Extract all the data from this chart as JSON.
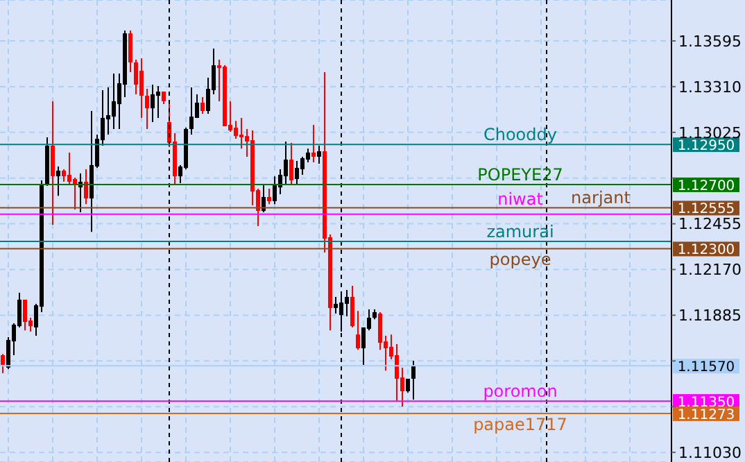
{
  "chart_data": {
    "type": "candlestick",
    "categories": [
      null,
      null,
      null,
      null,
      null,
      null,
      null,
      null,
      null,
      null,
      null,
      null,
      null,
      null,
      null,
      null,
      null,
      null,
      null,
      null,
      null,
      null,
      null,
      null,
      null,
      null,
      null,
      null,
      null,
      null,
      null,
      null,
      null,
      null,
      null,
      null,
      null,
      null,
      null,
      null,
      null,
      null,
      null,
      null,
      null,
      null,
      null,
      null,
      null,
      null,
      null,
      null,
      null,
      null,
      null,
      null,
      null,
      null,
      null,
      null,
      null,
      null,
      null,
      null,
      null,
      null,
      null,
      null,
      null,
      null,
      null,
      null,
      null,
      null,
      null,
      null,
      null,
      null,
      null,
      null,
      null,
      null,
      null,
      null,
      null,
      null,
      null,
      null,
      null,
      null,
      null,
      null,
      null,
      null,
      null,
      null,
      null,
      null,
      null,
      null,
      null,
      null,
      null,
      null,
      null,
      null,
      null,
      null,
      null,
      null,
      null,
      null,
      null,
      null,
      null,
      null,
      null,
      null,
      null,
      null,
      null
    ],
    "ohlc": [
      [
        1.11636,
        1.11644,
        1.11523,
        1.11575
      ],
      [
        1.11558,
        1.11748,
        1.11549,
        1.11731
      ],
      [
        1.11722,
        1.11835,
        1.11636,
        1.11826
      ],
      [
        1.11817,
        1.12025,
        1.11809,
        1.11982
      ],
      [
        1.11982,
        1.11982,
        1.11791,
        1.11843
      ],
      [
        1.11852,
        1.11869,
        1.11783,
        1.11817
      ],
      [
        1.11809,
        1.11956,
        1.11757,
        1.11947
      ],
      [
        1.11938,
        1.12726,
        1.11904,
        1.127
      ],
      [
        1.127,
        1.12994,
        1.12691,
        1.12942
      ],
      [
        1.12942,
        1.13219,
        1.12449,
        1.12751
      ],
      [
        1.12751,
        1.12812,
        1.1263,
        1.12786
      ],
      [
        1.12786,
        1.12795,
        1.12717,
        1.12751
      ],
      [
        1.1276,
        1.12899,
        1.127,
        1.12717
      ],
      [
        1.12734,
        1.12743,
        1.12544,
        1.127
      ],
      [
        1.12682,
        1.12769,
        1.12527,
        1.12717
      ],
      [
        1.12717,
        1.12795,
        1.12578,
        1.12613
      ],
      [
        1.12613,
        1.13158,
        1.12405,
        1.12821
      ],
      [
        1.12812,
        1.13011,
        1.12803,
        1.12985
      ],
      [
        1.12976,
        1.13288,
        1.12942,
        1.13115
      ],
      [
        1.13106,
        1.13305,
        1.13011,
        1.13132
      ],
      [
        1.13123,
        1.13392,
        1.13046,
        1.13219
      ],
      [
        1.13201,
        1.13392,
        1.13046,
        1.13331
      ],
      [
        1.13322,
        1.1366,
        1.13245,
        1.13642
      ],
      [
        1.13642,
        1.1366,
        1.134,
        1.13461
      ],
      [
        1.13461,
        1.13478,
        1.13262,
        1.13322
      ],
      [
        1.13409,
        1.13487,
        1.13115,
        1.13253
      ],
      [
        1.13253,
        1.13296,
        1.13046,
        1.13175
      ],
      [
        1.13175,
        1.13322,
        1.13089,
        1.13262
      ],
      [
        1.13253,
        1.13314,
        1.13115,
        1.13279
      ],
      [
        1.13279,
        1.13279,
        1.13201,
        1.13219
      ],
      [
        1.13089,
        1.13219,
        1.12933,
        1.12959
      ],
      [
        1.12968,
        1.1302,
        1.127,
        1.12751
      ],
      [
        1.12751,
        1.12821,
        1.12708,
        1.12812
      ],
      [
        1.12803,
        1.13054,
        1.12795,
        1.13046
      ],
      [
        1.13046,
        1.13305,
        1.13011,
        1.13123
      ],
      [
        1.13115,
        1.13262,
        1.13115,
        1.1321
      ],
      [
        1.1321,
        1.13245,
        1.13141,
        1.13158
      ],
      [
        1.13158,
        1.13366,
        1.13141,
        1.13296
      ],
      [
        1.13288,
        1.13547,
        1.13262,
        1.13443
      ],
      [
        1.13443,
        1.13478,
        1.13219,
        1.13426
      ],
      [
        1.13435,
        1.13443,
        1.13063,
        1.13063
      ],
      [
        1.13072,
        1.13219,
        1.13028,
        1.13037
      ],
      [
        1.13054,
        1.13097,
        1.12985,
        1.13002
      ],
      [
        1.13011,
        1.13115,
        1.12924,
        1.12994
      ],
      [
        1.13002,
        1.13046,
        1.12873,
        1.12968
      ],
      [
        1.12976,
        1.13037,
        1.1257,
        1.12656
      ],
      [
        1.12665,
        1.12674,
        1.1244,
        1.12535
      ],
      [
        1.12535,
        1.127,
        1.12527,
        1.12622
      ],
      [
        1.12622,
        1.12674,
        1.12578,
        1.12596
      ],
      [
        1.12596,
        1.12751,
        1.12578,
        1.127
      ],
      [
        1.12682,
        1.12795,
        1.12639,
        1.1276
      ],
      [
        1.12751,
        1.12968,
        1.127,
        1.12855
      ],
      [
        1.12855,
        1.12959,
        1.127,
        1.12726
      ],
      [
        1.12734,
        1.12847,
        1.127,
        1.12803
      ],
      [
        1.12795,
        1.12873,
        1.1276,
        1.12864
      ],
      [
        1.12855,
        1.12924,
        1.12838,
        1.12899
      ],
      [
        1.12899,
        1.13072,
        1.12838,
        1.12873
      ],
      [
        1.12873,
        1.12942,
        1.12829,
        1.12907
      ],
      [
        1.12907,
        1.134,
        1.12276,
        1.12362
      ],
      [
        1.12371,
        1.12388,
        1.11791,
        1.1193
      ],
      [
        1.1193,
        1.11999,
        1.11895,
        1.11956
      ],
      [
        1.11886,
        1.12016,
        1.11783,
        1.11964
      ],
      [
        1.11956,
        1.12042,
        1.11878,
        1.11999
      ],
      [
        1.11999,
        1.12068,
        1.11809,
        1.11817
      ],
      [
        1.11765,
        1.11912,
        1.1167,
        1.11679
      ],
      [
        1.11679,
        1.11809,
        1.11575,
        1.11809
      ],
      [
        1.118,
        1.11921,
        1.11791,
        1.11869
      ],
      [
        1.11869,
        1.11921,
        1.1186,
        1.11904
      ],
      [
        1.11895,
        1.11904,
        1.1167,
        1.11713
      ],
      [
        1.11722,
        1.11757,
        1.1154,
        1.11679
      ],
      [
        1.11688,
        1.11765,
        1.1161,
        1.11627
      ],
      [
        1.11636,
        1.11705,
        1.1135,
        1.11489
      ],
      [
        1.11497,
        1.11558,
        1.11316,
        1.11411
      ],
      [
        1.11411,
        1.11489,
        1.11402,
        1.11489
      ],
      [
        1.11489,
        1.11601,
        1.11359,
        1.1157
      ],
      null,
      null,
      null,
      null,
      null,
      null,
      null,
      null,
      null,
      null,
      null,
      null,
      null,
      null,
      null,
      null,
      null,
      null,
      null,
      null,
      null,
      null,
      null,
      null,
      null,
      null,
      null,
      null,
      null,
      null,
      null,
      null,
      null,
      null,
      null,
      null,
      null,
      null,
      null,
      null,
      null,
      null,
      null,
      null,
      null,
      null
    ],
    "ylim": [
      1.1097,
      1.1385
    ],
    "yticks": [
      1.13595,
      {
        "value": 1.1331,
        "label": "1.13310"
      },
      1.13025,
      {
        "value": 1.1274,
        "label": null
      },
      1.12455,
      {
        "value": 1.1217,
        "label": "1.12170"
      },
      1.11885,
      {
        "value": 1.116,
        "label": null
      },
      {
        "value": 1.11315,
        "label": null
      },
      {
        "value": 1.1103,
        "label": "1.11030"
      }
    ],
    "annotations": [
      "1.12950",
      "1.12700",
      "1.12555",
      "1.12300",
      "1.11570",
      "1.11350",
      "1.11273"
    ],
    "tick_labels": "y",
    "grid": true,
    "ref_lines": [
      {
        "axis": "y",
        "value": 1.1295,
        "label": "Chooddy",
        "color": "#008080"
      },
      {
        "axis": "y",
        "value": 1.127,
        "label": "POPEYE27",
        "color": "#007800"
      },
      {
        "axis": "y",
        "value": 1.12515,
        "label": "niwat",
        "color": "#ff00ff"
      },
      {
        "axis": "y",
        "value": 1.12555,
        "label": "narjant",
        "color": "#8b4a1c"
      },
      {
        "axis": "y",
        "value": 1.12345,
        "label": "zamurai",
        "color": "#008080"
      },
      {
        "axis": "y",
        "value": 1.123,
        "label": "popeye",
        "color": "#8b4a1c"
      },
      {
        "axis": "y",
        "value": 1.1135,
        "label": "poromon",
        "color": "#ff00ff"
      },
      {
        "axis": "y",
        "value": 1.11273,
        "label": "papae1717",
        "color": "#d2691e"
      },
      {
        "axis": "y",
        "value": 1.1157,
        "color": "#a8d0f8"
      }
    ]
  }
}
